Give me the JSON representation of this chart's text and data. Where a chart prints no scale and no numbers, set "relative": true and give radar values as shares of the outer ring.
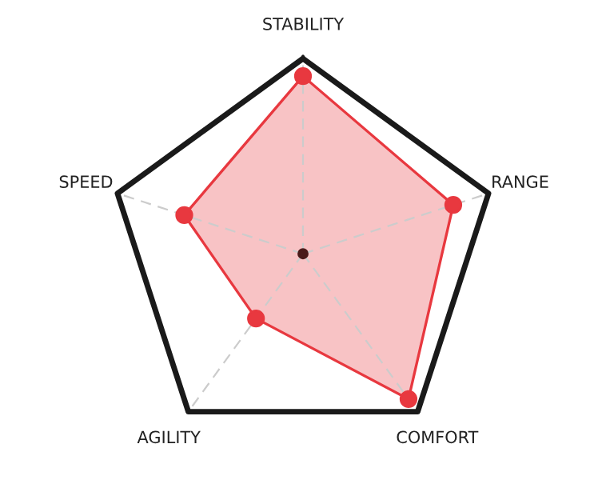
{
  "chart_data": {
    "type": "radar",
    "relative": true,
    "categories": [
      "STABILITY",
      "RANGE",
      "COMFORT",
      "AGILITY",
      "SPEED"
    ],
    "series": [
      {
        "color": "#e8383f",
        "values": [
          0.91,
          0.81,
          0.92,
          0.41,
          0.64
        ]
      }
    ],
    "marker": "circle",
    "grid": true
  }
}
